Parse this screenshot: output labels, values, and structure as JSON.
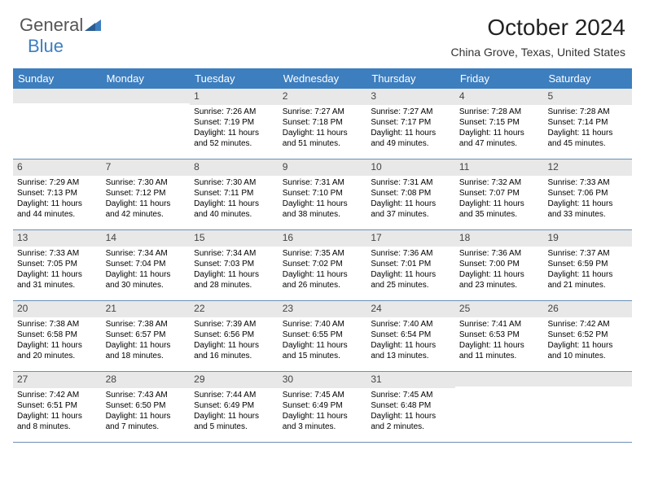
{
  "logo": {
    "text1": "General",
    "text2": "Blue"
  },
  "title": "October 2024",
  "location": "China Grove, Texas, United States",
  "colors": {
    "header_bg": "#3d7ebf",
    "header_text": "#ffffff",
    "daynum_bg": "#e8e8e8",
    "row_border": "#6b8fb8",
    "body_text": "#000000",
    "page_bg": "#ffffff"
  },
  "daysOfWeek": [
    "Sunday",
    "Monday",
    "Tuesday",
    "Wednesday",
    "Thursday",
    "Friday",
    "Saturday"
  ],
  "weeks": [
    [
      null,
      null,
      {
        "n": "1",
        "sr": "7:26 AM",
        "ss": "7:19 PM",
        "dl1": "11 hours",
        "dl2": "and 52 minutes."
      },
      {
        "n": "2",
        "sr": "7:27 AM",
        "ss": "7:18 PM",
        "dl1": "11 hours",
        "dl2": "and 51 minutes."
      },
      {
        "n": "3",
        "sr": "7:27 AM",
        "ss": "7:17 PM",
        "dl1": "11 hours",
        "dl2": "and 49 minutes."
      },
      {
        "n": "4",
        "sr": "7:28 AM",
        "ss": "7:15 PM",
        "dl1": "11 hours",
        "dl2": "and 47 minutes."
      },
      {
        "n": "5",
        "sr": "7:28 AM",
        "ss": "7:14 PM",
        "dl1": "11 hours",
        "dl2": "and 45 minutes."
      }
    ],
    [
      {
        "n": "6",
        "sr": "7:29 AM",
        "ss": "7:13 PM",
        "dl1": "11 hours",
        "dl2": "and 44 minutes."
      },
      {
        "n": "7",
        "sr": "7:30 AM",
        "ss": "7:12 PM",
        "dl1": "11 hours",
        "dl2": "and 42 minutes."
      },
      {
        "n": "8",
        "sr": "7:30 AM",
        "ss": "7:11 PM",
        "dl1": "11 hours",
        "dl2": "and 40 minutes."
      },
      {
        "n": "9",
        "sr": "7:31 AM",
        "ss": "7:10 PM",
        "dl1": "11 hours",
        "dl2": "and 38 minutes."
      },
      {
        "n": "10",
        "sr": "7:31 AM",
        "ss": "7:08 PM",
        "dl1": "11 hours",
        "dl2": "and 37 minutes."
      },
      {
        "n": "11",
        "sr": "7:32 AM",
        "ss": "7:07 PM",
        "dl1": "11 hours",
        "dl2": "and 35 minutes."
      },
      {
        "n": "12",
        "sr": "7:33 AM",
        "ss": "7:06 PM",
        "dl1": "11 hours",
        "dl2": "and 33 minutes."
      }
    ],
    [
      {
        "n": "13",
        "sr": "7:33 AM",
        "ss": "7:05 PM",
        "dl1": "11 hours",
        "dl2": "and 31 minutes."
      },
      {
        "n": "14",
        "sr": "7:34 AM",
        "ss": "7:04 PM",
        "dl1": "11 hours",
        "dl2": "and 30 minutes."
      },
      {
        "n": "15",
        "sr": "7:34 AM",
        "ss": "7:03 PM",
        "dl1": "11 hours",
        "dl2": "and 28 minutes."
      },
      {
        "n": "16",
        "sr": "7:35 AM",
        "ss": "7:02 PM",
        "dl1": "11 hours",
        "dl2": "and 26 minutes."
      },
      {
        "n": "17",
        "sr": "7:36 AM",
        "ss": "7:01 PM",
        "dl1": "11 hours",
        "dl2": "and 25 minutes."
      },
      {
        "n": "18",
        "sr": "7:36 AM",
        "ss": "7:00 PM",
        "dl1": "11 hours",
        "dl2": "and 23 minutes."
      },
      {
        "n": "19",
        "sr": "7:37 AM",
        "ss": "6:59 PM",
        "dl1": "11 hours",
        "dl2": "and 21 minutes."
      }
    ],
    [
      {
        "n": "20",
        "sr": "7:38 AM",
        "ss": "6:58 PM",
        "dl1": "11 hours",
        "dl2": "and 20 minutes."
      },
      {
        "n": "21",
        "sr": "7:38 AM",
        "ss": "6:57 PM",
        "dl1": "11 hours",
        "dl2": "and 18 minutes."
      },
      {
        "n": "22",
        "sr": "7:39 AM",
        "ss": "6:56 PM",
        "dl1": "11 hours",
        "dl2": "and 16 minutes."
      },
      {
        "n": "23",
        "sr": "7:40 AM",
        "ss": "6:55 PM",
        "dl1": "11 hours",
        "dl2": "and 15 minutes."
      },
      {
        "n": "24",
        "sr": "7:40 AM",
        "ss": "6:54 PM",
        "dl1": "11 hours",
        "dl2": "and 13 minutes."
      },
      {
        "n": "25",
        "sr": "7:41 AM",
        "ss": "6:53 PM",
        "dl1": "11 hours",
        "dl2": "and 11 minutes."
      },
      {
        "n": "26",
        "sr": "7:42 AM",
        "ss": "6:52 PM",
        "dl1": "11 hours",
        "dl2": "and 10 minutes."
      }
    ],
    [
      {
        "n": "27",
        "sr": "7:42 AM",
        "ss": "6:51 PM",
        "dl1": "11 hours",
        "dl2": "and 8 minutes."
      },
      {
        "n": "28",
        "sr": "7:43 AM",
        "ss": "6:50 PM",
        "dl1": "11 hours",
        "dl2": "and 7 minutes."
      },
      {
        "n": "29",
        "sr": "7:44 AM",
        "ss": "6:49 PM",
        "dl1": "11 hours",
        "dl2": "and 5 minutes."
      },
      {
        "n": "30",
        "sr": "7:45 AM",
        "ss": "6:49 PM",
        "dl1": "11 hours",
        "dl2": "and 3 minutes."
      },
      {
        "n": "31",
        "sr": "7:45 AM",
        "ss": "6:48 PM",
        "dl1": "11 hours",
        "dl2": "and 2 minutes."
      },
      null,
      null
    ]
  ]
}
